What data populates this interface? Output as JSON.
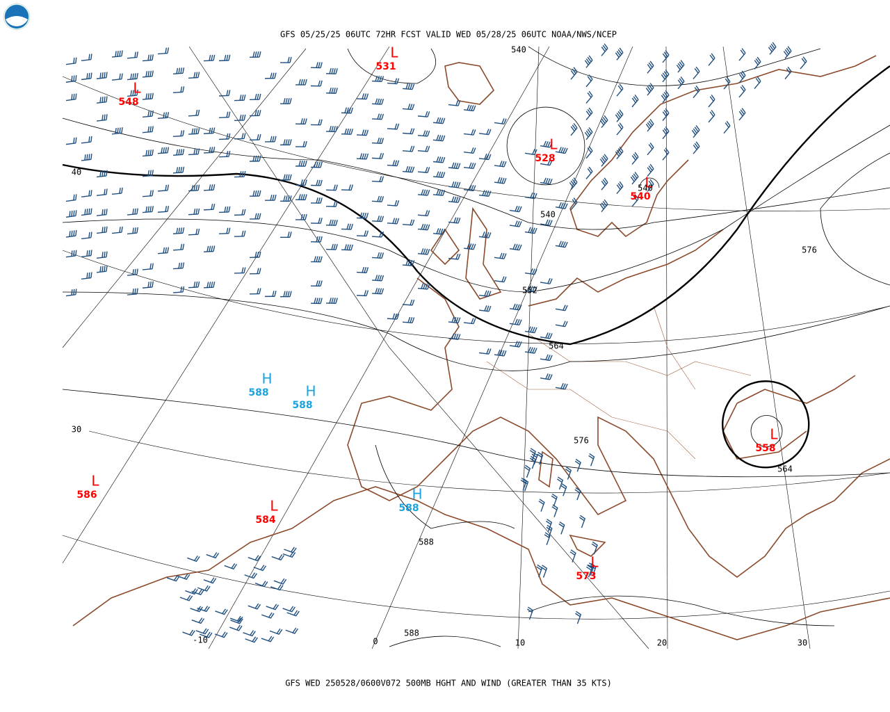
{
  "header": {
    "title": "GFS 05/25/25 06UTC 72HR FCST VALID WED 05/28/25 06UTC NOAA/NWS/NCEP"
  },
  "footer": {
    "caption": "GFS WED 250528/0600V072 500MB HGHT AND WIND (GREATER THAN 35 KTS)"
  },
  "centers": [
    {
      "symbol": "L",
      "value": "531"
    },
    {
      "symbol": "L",
      "value": "548"
    },
    {
      "symbol": "L",
      "value": "528"
    },
    {
      "symbol": "L",
      "value": "540"
    },
    {
      "symbol": "H",
      "value": "588"
    },
    {
      "symbol": "H",
      "value": "588"
    },
    {
      "symbol": "L",
      "value": "586"
    },
    {
      "symbol": "L",
      "value": "584"
    },
    {
      "symbol": "H",
      "value": "588"
    },
    {
      "symbol": "L",
      "value": "573"
    },
    {
      "symbol": "L",
      "value": "558"
    }
  ],
  "contour_labels": [
    "540",
    "540",
    "540",
    "552",
    "564",
    "576",
    "576",
    "588",
    "588",
    "564"
  ],
  "graticule_labels": [
    "40",
    "30",
    "-10",
    "0",
    "10",
    "20",
    "30"
  ]
}
